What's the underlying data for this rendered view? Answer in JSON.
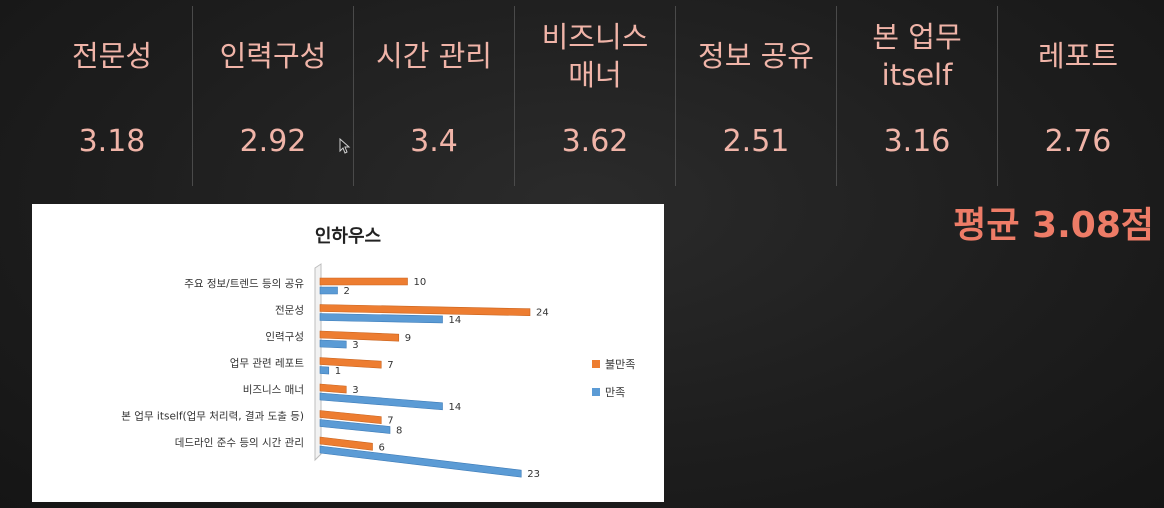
{
  "score_table": {
    "columns": [
      {
        "header": "전문성",
        "value": "3.18"
      },
      {
        "header": "인력구성",
        "value": "2.92"
      },
      {
        "header": "시간 관리",
        "value": "3.4"
      },
      {
        "header": "비즈니스\n매너",
        "value": "3.62"
      },
      {
        "header": "정보 공유",
        "value": "2.51"
      },
      {
        "header": "본 업무\nitself",
        "value": "3.16"
      },
      {
        "header": "레포트",
        "value": "2.76"
      }
    ]
  },
  "average_label": "평균 3.08점",
  "colors": {
    "accent_text": "#f0b4a8",
    "average": "#ee7c67",
    "dissatisfied": "#ed7d31",
    "satisfied": "#5b9bd5"
  },
  "chart_data": {
    "type": "bar",
    "orientation": "horizontal",
    "title": "인하우스",
    "categories": [
      "주요 정보/트렌드 등의 공유",
      "전문성",
      "인력구성",
      "업무 관련 레포트",
      "비즈니스 매너",
      "본 업무 itself(업무 처리력, 결과 도출 등)",
      "데드라인 준수 등의 시간 관리"
    ],
    "series": [
      {
        "name": "불만족",
        "color": "#ed7d31",
        "values": [
          10,
          24,
          9,
          7,
          3,
          7,
          6
        ]
      },
      {
        "name": "만족",
        "color": "#5b9bd5",
        "values": [
          2,
          14,
          3,
          1,
          14,
          8,
          23
        ]
      }
    ],
    "xlim": [
      0,
      25
    ],
    "grid": false,
    "legend": "right",
    "data_labels": true
  }
}
